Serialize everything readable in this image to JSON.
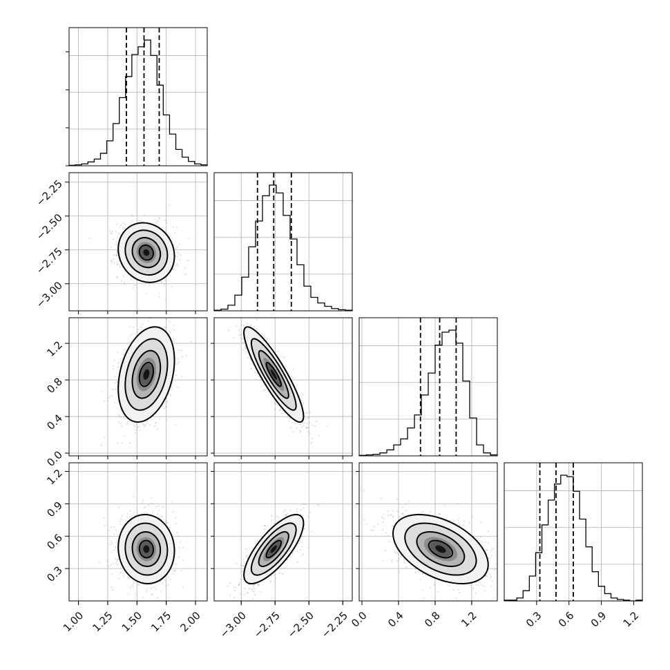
{
  "chart_data": {
    "type": "corner",
    "parameters": [
      {
        "range": [
          0.92,
          2.1
        ],
        "ticks": [
          1.0,
          1.25,
          1.5,
          1.75,
          2.0
        ],
        "tick_labels": [
          "1.00",
          "1.25",
          "1.50",
          "1.75",
          "2.00"
        ],
        "quantiles": [
          1.41,
          1.56,
          1.69
        ]
      },
      {
        "range": [
          -3.2,
          -2.18
        ],
        "ticks": [
          -3.0,
          -2.75,
          -2.5,
          -2.25
        ],
        "tick_labels": [
          "−3.00",
          "−2.75",
          "−2.50",
          "−2.25"
        ],
        "quantiles": [
          -2.88,
          -2.76,
          -2.63
        ]
      },
      {
        "range": [
          -0.03,
          1.48
        ],
        "ticks": [
          0.0,
          0.4,
          0.8,
          1.2
        ],
        "tick_labels": [
          "0.0",
          "0.4",
          "0.8",
          "1.2"
        ],
        "quantiles": [
          0.64,
          0.85,
          1.03
        ]
      },
      {
        "range": [
          0.0,
          1.28
        ],
        "ticks": [
          0.3,
          0.6,
          0.9,
          1.2
        ],
        "tick_labels": [
          "0.3",
          "0.6",
          "0.9",
          "1.2"
        ],
        "quantiles": [
          0.33,
          0.48,
          0.64
        ]
      }
    ],
    "histograms": [
      {
        "bin_edges": [
          0.92,
          2.1
        ],
        "counts": [
          1,
          2,
          4,
          8,
          14,
          26,
          52,
          88,
          142,
          186,
          232,
          248,
          262,
          230,
          168,
          106,
          66,
          34,
          18,
          9,
          4,
          2
        ]
      },
      {
        "bin_edges": [
          -3.2,
          -2.18
        ],
        "counts": [
          1,
          3,
          10,
          28,
          60,
          114,
          160,
          205,
          224,
          210,
          170,
          128,
          82,
          44,
          24,
          14,
          8,
          4,
          2,
          1
        ]
      },
      {
        "bin_edges": [
          -0.03,
          1.48
        ],
        "counts": [
          1,
          2,
          3,
          6,
          12,
          22,
          34,
          56,
          82,
          122,
          166,
          222,
          248,
          252,
          226,
          150,
          76,
          22,
          6,
          2
        ]
      },
      {
        "bin_edges": [
          0.0,
          1.28
        ],
        "counts": [
          1,
          1,
          4,
          14,
          34,
          66,
          104,
          138,
          160,
          172,
          170,
          150,
          112,
          74,
          40,
          20,
          10,
          4,
          2,
          1,
          0,
          1
        ]
      }
    ],
    "pairs": [
      {
        "x_param": 0,
        "y_param": 1,
        "mean": [
          1.58,
          -2.77
        ],
        "std": [
          0.12,
          0.11
        ],
        "corr": -0.12
      },
      {
        "x_param": 0,
        "y_param": 2,
        "mean": [
          1.58,
          0.86
        ],
        "std": [
          0.12,
          0.26
        ],
        "corr": 0.3
      },
      {
        "x_param": 1,
        "y_param": 2,
        "mean": [
          -2.76,
          0.86
        ],
        "std": [
          0.11,
          0.26
        ],
        "corr": -0.88
      },
      {
        "x_param": 0,
        "y_param": 3,
        "mean": [
          1.58,
          0.48
        ],
        "std": [
          0.12,
          0.16
        ],
        "corr": -0.05
      },
      {
        "x_param": 1,
        "y_param": 3,
        "mean": [
          -2.76,
          0.48
        ],
        "std": [
          0.11,
          0.16
        ],
        "corr": 0.75
      },
      {
        "x_param": 2,
        "y_param": 3,
        "mean": [
          0.86,
          0.48
        ],
        "std": [
          0.26,
          0.16
        ],
        "corr": -0.45
      }
    ],
    "contour_levels_sigma": [
      0.5,
      1.0,
      1.5,
      2.0
    ],
    "grid": true
  }
}
